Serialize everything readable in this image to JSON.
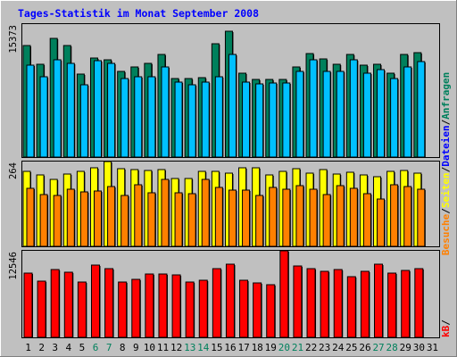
{
  "title": "Tages-Statistik im Monat September 2008",
  "side_label": {
    "part1": "Anfragen",
    "sep1": "/",
    "part2": "Dateien",
    "sep2": "/",
    "part3": "Seiten",
    "sep3": "/",
    "part4": "Besuche",
    "sep4": "/",
    "part5": "kB"
  },
  "colors": {
    "background": "#c0c0c0",
    "title": "#0000ff",
    "hits": "#00805c",
    "files": "#00c0ff",
    "pages": "#ff8000",
    "visits": "#ffff00",
    "kbytes": "#ff0000",
    "weekend_label": "#00805c"
  },
  "chart_data": {
    "type": "bar",
    "categories": [
      "1",
      "2",
      "3",
      "4",
      "5",
      "6",
      "7",
      "8",
      "9",
      "10",
      "11",
      "12",
      "13",
      "14",
      "15",
      "16",
      "17",
      "18",
      "19",
      "20",
      "21",
      "22",
      "23",
      "24",
      "25",
      "26",
      "27",
      "28",
      "29",
      "30",
      "31"
    ],
    "weekend_days": [
      "6",
      "7",
      "13",
      "14",
      "20",
      "21",
      "27",
      "28"
    ],
    "panels": [
      {
        "max_label": "15373",
        "ylim": [
          0,
          15373
        ],
        "series": [
          {
            "name": "Anfragen",
            "values": [
              12800,
              10700,
              13600,
              12800,
              9500,
              11400,
              11200,
              9800,
              10300,
              10800,
              11800,
              9000,
              9000,
              9100,
              13000,
              14400,
              9600,
              8900,
              8900,
              8900,
              10400,
              11900,
              11300,
              10700,
              11800,
              10600,
              10700,
              9600,
              11800,
              12000,
              null
            ]
          },
          {
            "name": "Dateien",
            "values": [
              10600,
              9200,
              11200,
              10800,
              8300,
              11100,
              10800,
              9000,
              9200,
              9200,
              10300,
              8600,
              8300,
              8600,
              9200,
              11800,
              8600,
              8400,
              8500,
              8500,
              9800,
              11200,
              9800,
              9800,
              11200,
              9600,
              10000,
              9000,
              10400,
              11000,
              null
            ]
          }
        ]
      },
      {
        "max_label": "264",
        "ylim": [
          0,
          264
        ],
        "series": [
          {
            "name": "Seiten",
            "values": [
              232,
              219,
              207,
              222,
              230,
              242,
              260,
              240,
              236,
              234,
              236,
              210,
              210,
              232,
              232,
              225,
              242,
              242,
              219,
              232,
              240,
              226,
              236,
              224,
              228,
              219,
              215,
              232,
              234,
              226,
              null
            ]
          },
          {
            "name": "Besuche",
            "values": [
              180,
              160,
              158,
              175,
              168,
              170,
              185,
              156,
              190,
              164,
              205,
              164,
              162,
              205,
              182,
              174,
              172,
              156,
              182,
              176,
              188,
              176,
              159,
              188,
              180,
              162,
              145,
              190,
              183,
              176,
              null
            ]
          }
        ]
      },
      {
        "max_label": "12546",
        "ylim": [
          0,
          12546
        ],
        "series": [
          {
            "name": "kB",
            "values": [
              9200,
              8100,
              9700,
              9300,
              8000,
              10400,
              9900,
              8000,
              8300,
              9100,
              9100,
              8900,
              8000,
              8200,
              9900,
              10500,
              8200,
              7800,
              7600,
              12400,
              10200,
              9900,
              9500,
              9700,
              8700,
              9500,
              10500,
              9200,
              9600,
              9900,
              null
            ]
          }
        ]
      }
    ]
  }
}
